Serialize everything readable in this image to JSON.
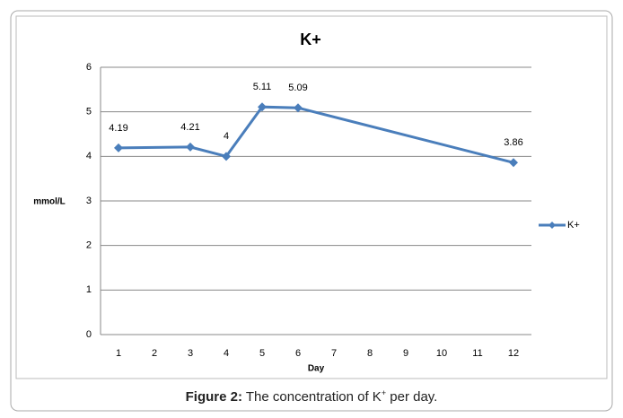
{
  "chart_data": {
    "type": "line",
    "title": "K+",
    "x": [
      1,
      3,
      4,
      5,
      6,
      12
    ],
    "series": [
      {
        "name": "K+",
        "color": "#4a7ebb",
        "values": [
          4.19,
          4.21,
          4,
          5.11,
          5.09,
          3.86
        ]
      }
    ],
    "xlim": [
      0.5,
      12.5
    ],
    "xticks": [
      1,
      2,
      3,
      4,
      5,
      6,
      7,
      8,
      9,
      10,
      11,
      12
    ],
    "ylim": [
      0,
      6
    ],
    "yticks": [
      0,
      1,
      2,
      3,
      4,
      5,
      6
    ],
    "xlabel": "Day",
    "ylabel": "mmol/L",
    "grid": true,
    "legend": "right"
  },
  "caption": {
    "label": "Figure 2:",
    "text": [
      "The concentration of K",
      "+",
      " per day."
    ]
  }
}
